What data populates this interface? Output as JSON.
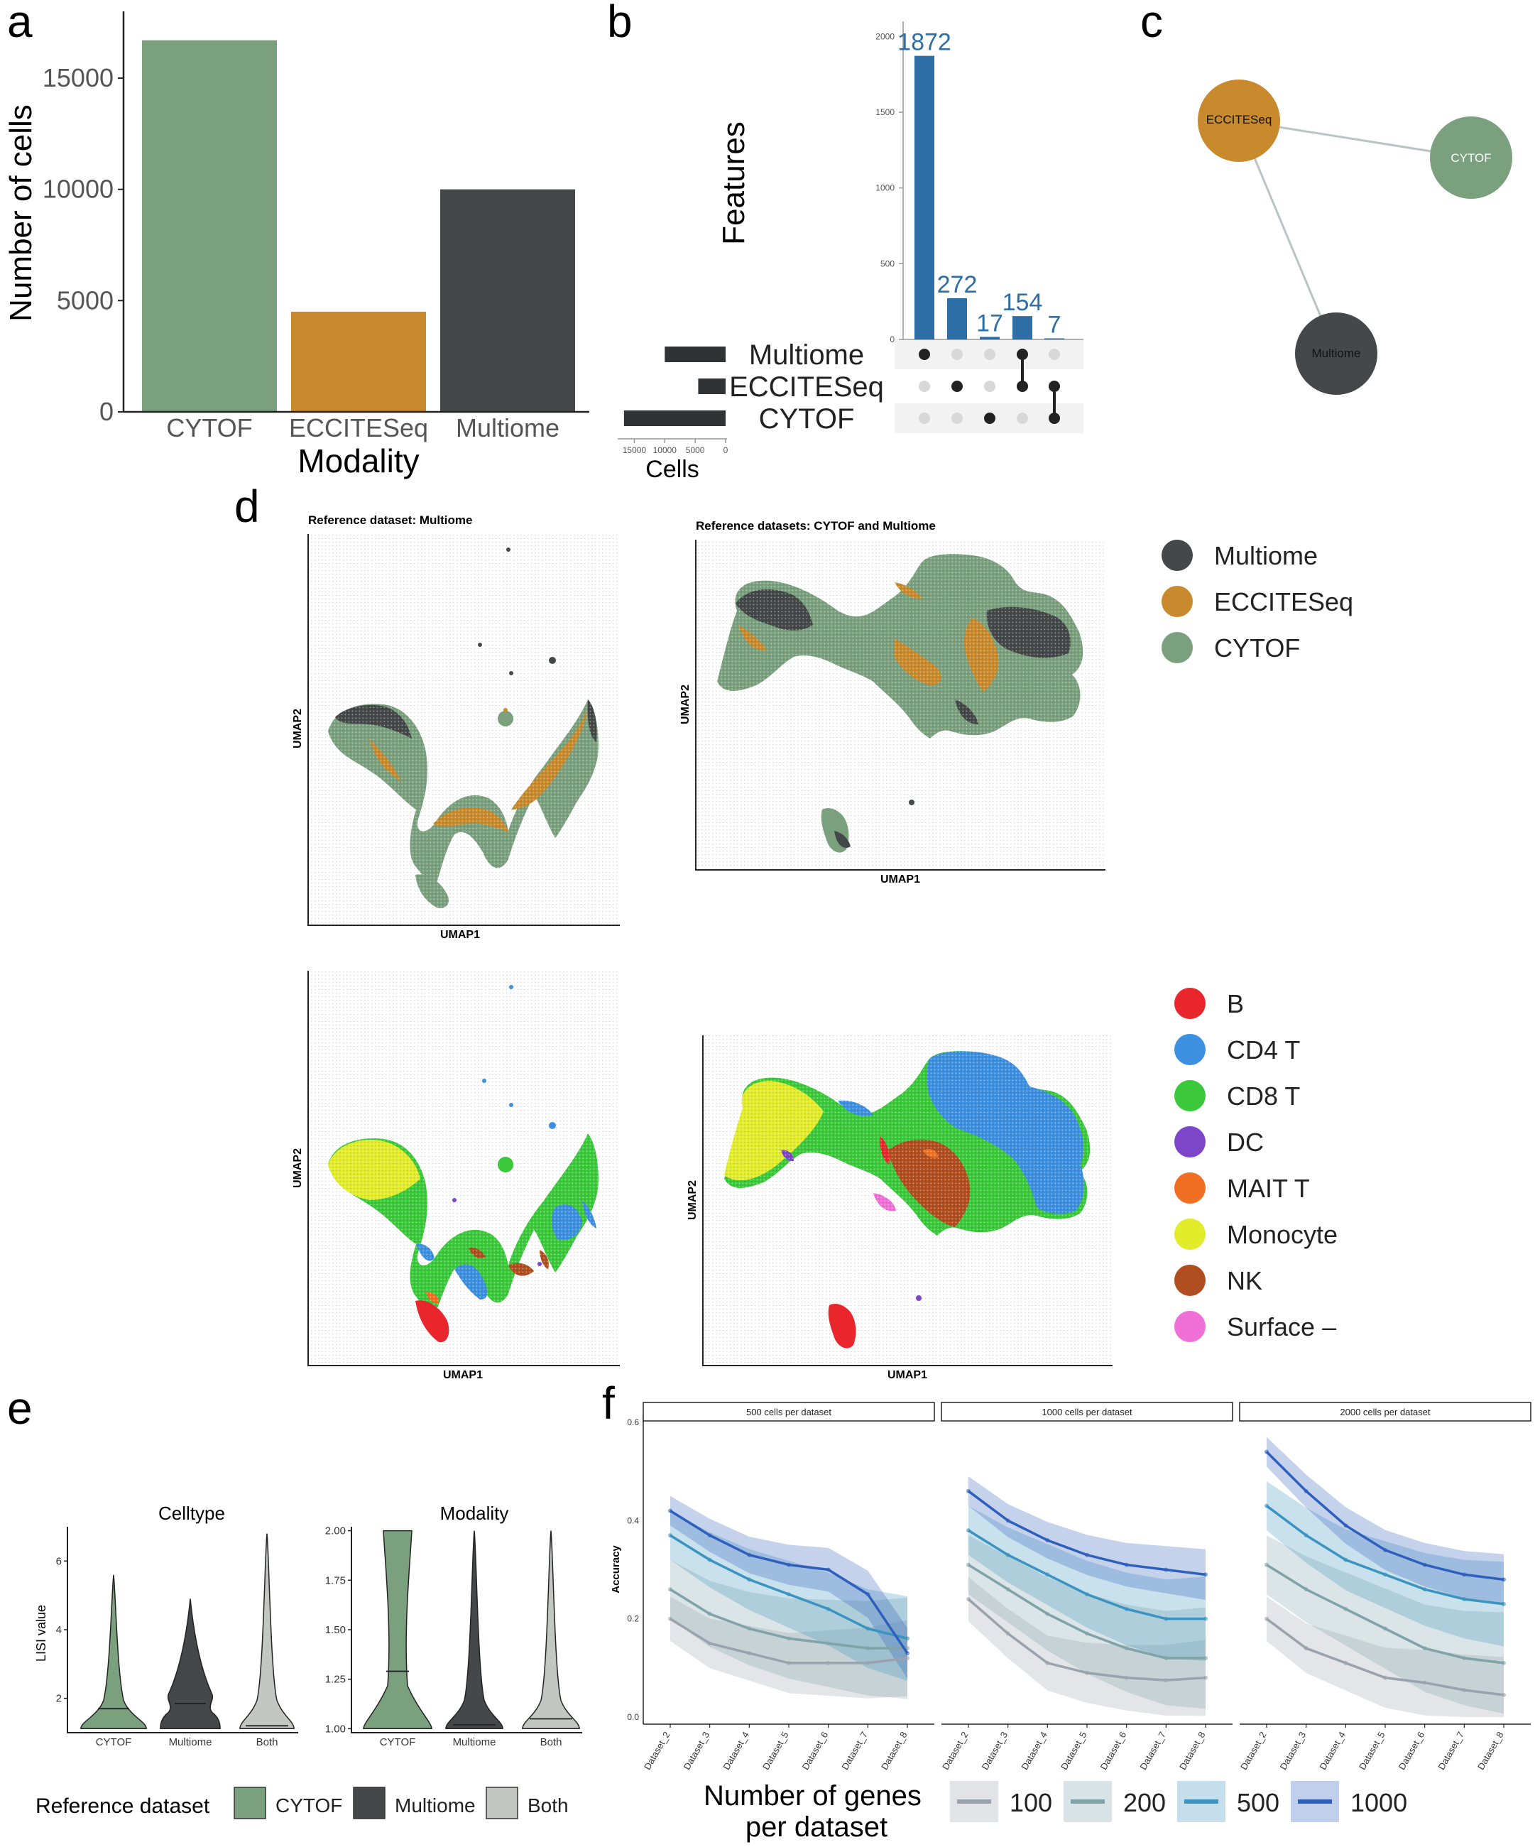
{
  "colors": {
    "cytof": "#7aa07e",
    "eccite": "#c88a2c",
    "multiome": "#454849",
    "both": "#c2c7c4",
    "upset_bar": "#2c6ea5",
    "g100": "#9aa3ad",
    "g200": "#7fa3a8",
    "g500": "#3b93c0",
    "g1000": "#2f5fbc"
  },
  "panel_labels": [
    "a",
    "b",
    "c",
    "d",
    "e",
    "f"
  ],
  "chart_data": [
    {
      "panel": "a",
      "type": "bar",
      "categories": [
        "CYTOF",
        "ECCITESeq",
        "Multiome"
      ],
      "values": [
        16700,
        4500,
        10000
      ],
      "xlabel": "Modality",
      "ylabel": "Number of cells",
      "ylim": [
        0,
        18000
      ],
      "yticks": [
        "0",
        "5000",
        "10000",
        "15000"
      ]
    },
    {
      "panel": "b",
      "type": "bar",
      "title": "Features",
      "intersections": [
        {
          "value": 1872,
          "label": "1872",
          "members": [
            "Multiome"
          ]
        },
        {
          "value": 272,
          "label": "272",
          "members": [
            "ECCITESeq"
          ]
        },
        {
          "value": 17,
          "label": "17",
          "members": [
            "CYTOF"
          ]
        },
        {
          "value": 154,
          "label": "154",
          "members": [
            "Multiome",
            "ECCITESeq"
          ]
        },
        {
          "value": 7,
          "label": "7",
          "members": [
            "ECCITESeq",
            "CYTOF"
          ]
        }
      ],
      "yticks": [
        "0",
        "500",
        "1000",
        "1500",
        "2000"
      ],
      "ylim": [
        0,
        2100
      ],
      "sets": [
        "Multiome",
        "ECCITESeq",
        "CYTOF"
      ],
      "set_sizes": [
        10000,
        4500,
        16700
      ],
      "set_axis_ticks": [
        "15000",
        "10000",
        "5000",
        "0"
      ],
      "set_axis_label": "Cells"
    },
    {
      "panel": "c",
      "type": "network",
      "nodes": [
        "ECCITESeq",
        "CYTOF",
        "Multiome"
      ],
      "edges": [
        [
          "ECCITESeq",
          "CYTOF"
        ],
        [
          "ECCITESeq",
          "Multiome"
        ]
      ]
    },
    {
      "panel": "d",
      "type": "scatter",
      "titles": [
        "Reference dataset: Multiome",
        "Reference datasets: CYTOF and Multiome"
      ],
      "xlabel": "UMAP1",
      "ylabel": "UMAP2",
      "legend_modality": [
        "Multiome",
        "ECCITESeq",
        "CYTOF"
      ],
      "legend_celltype": [
        {
          "label": "B",
          "color": "#e8262c"
        },
        {
          "label": "CD4 T",
          "color": "#3d8fe0"
        },
        {
          "label": "CD8 T",
          "color": "#3bc93b"
        },
        {
          "label": "DC",
          "color": "#7d45c8"
        },
        {
          "label": "MAIT T",
          "color": "#f06f22"
        },
        {
          "label": "Monocyte",
          "color": "#e3ec2a"
        },
        {
          "label": "NK",
          "color": "#b14e1f"
        },
        {
          "label": "Surface –",
          "color": "#f070d8"
        }
      ]
    },
    {
      "panel": "e",
      "type": "violin",
      "facets": [
        {
          "title": "Celltype",
          "yticks": [
            "2",
            "4",
            "6"
          ],
          "ylim": [
            1,
            7
          ],
          "medians": {
            "CYTOF": 1.7,
            "Multiome": 1.85,
            "Both": 1.2
          },
          "max": {
            "CYTOF": 5.6,
            "Multiome": 4.9,
            "Both": 6.8
          }
        },
        {
          "title": "Modality",
          "yticks": [
            "1.00",
            "1.25",
            "1.50",
            "1.75",
            "2.00"
          ],
          "ylim": [
            0.98,
            2.02
          ],
          "medians": {
            "CYTOF": 1.29,
            "Multiome": 1.02,
            "Both": 1.05
          },
          "max": {
            "CYTOF": 2.0,
            "Multiome": 2.0,
            "Both": 2.0
          }
        }
      ],
      "categories": [
        "CYTOF",
        "Multiome",
        "Both"
      ],
      "ylabel": "LISI value",
      "legend_title": "Reference dataset",
      "legend": [
        "CYTOF",
        "Multiome",
        "Both"
      ]
    },
    {
      "panel": "f",
      "type": "line",
      "ylabel": "Accuracy",
      "yticks": [
        "0.0",
        "0.2",
        "0.4",
        "0.6"
      ],
      "ylim": [
        0,
        0.6
      ],
      "x": [
        "Dataset_2",
        "Dataset_3",
        "Dataset_4",
        "Dataset_5",
        "Dataset_6",
        "Dataset_7",
        "Dataset_8"
      ],
      "legend_title": "Number of genes per dataset",
      "facets": [
        {
          "title": "500 cells per dataset",
          "series": [
            {
              "name": "100",
              "values": [
                0.2,
                0.15,
                0.13,
                0.11,
                0.11,
                0.11,
                0.12
              ]
            },
            {
              "name": "200",
              "values": [
                0.26,
                0.21,
                0.18,
                0.16,
                0.15,
                0.14,
                0.14
              ]
            },
            {
              "name": "500",
              "values": [
                0.37,
                0.32,
                0.28,
                0.25,
                0.22,
                0.18,
                0.16
              ]
            },
            {
              "name": "1000",
              "values": [
                0.42,
                0.37,
                0.33,
                0.31,
                0.3,
                0.25,
                0.13
              ]
            }
          ]
        },
        {
          "title": "1000 cells per dataset",
          "series": [
            {
              "name": "100",
              "values": [
                0.24,
                0.17,
                0.11,
                0.09,
                0.08,
                0.075,
                0.08
              ]
            },
            {
              "name": "200",
              "values": [
                0.31,
                0.26,
                0.21,
                0.17,
                0.14,
                0.12,
                0.12
              ]
            },
            {
              "name": "500",
              "values": [
                0.38,
                0.33,
                0.29,
                0.25,
                0.22,
                0.2,
                0.2
              ]
            },
            {
              "name": "1000",
              "values": [
                0.46,
                0.4,
                0.36,
                0.33,
                0.31,
                0.3,
                0.29
              ]
            }
          ]
        },
        {
          "title": "2000 cells per dataset",
          "series": [
            {
              "name": "100",
              "values": [
                0.2,
                0.14,
                0.11,
                0.08,
                0.07,
                0.055,
                0.045
              ]
            },
            {
              "name": "200",
              "values": [
                0.31,
                0.26,
                0.22,
                0.18,
                0.14,
                0.12,
                0.11
              ]
            },
            {
              "name": "500",
              "values": [
                0.43,
                0.37,
                0.32,
                0.29,
                0.26,
                0.24,
                0.23
              ]
            },
            {
              "name": "1000",
              "values": [
                0.54,
                0.46,
                0.39,
                0.34,
                0.31,
                0.29,
                0.28
              ]
            }
          ]
        }
      ]
    }
  ]
}
